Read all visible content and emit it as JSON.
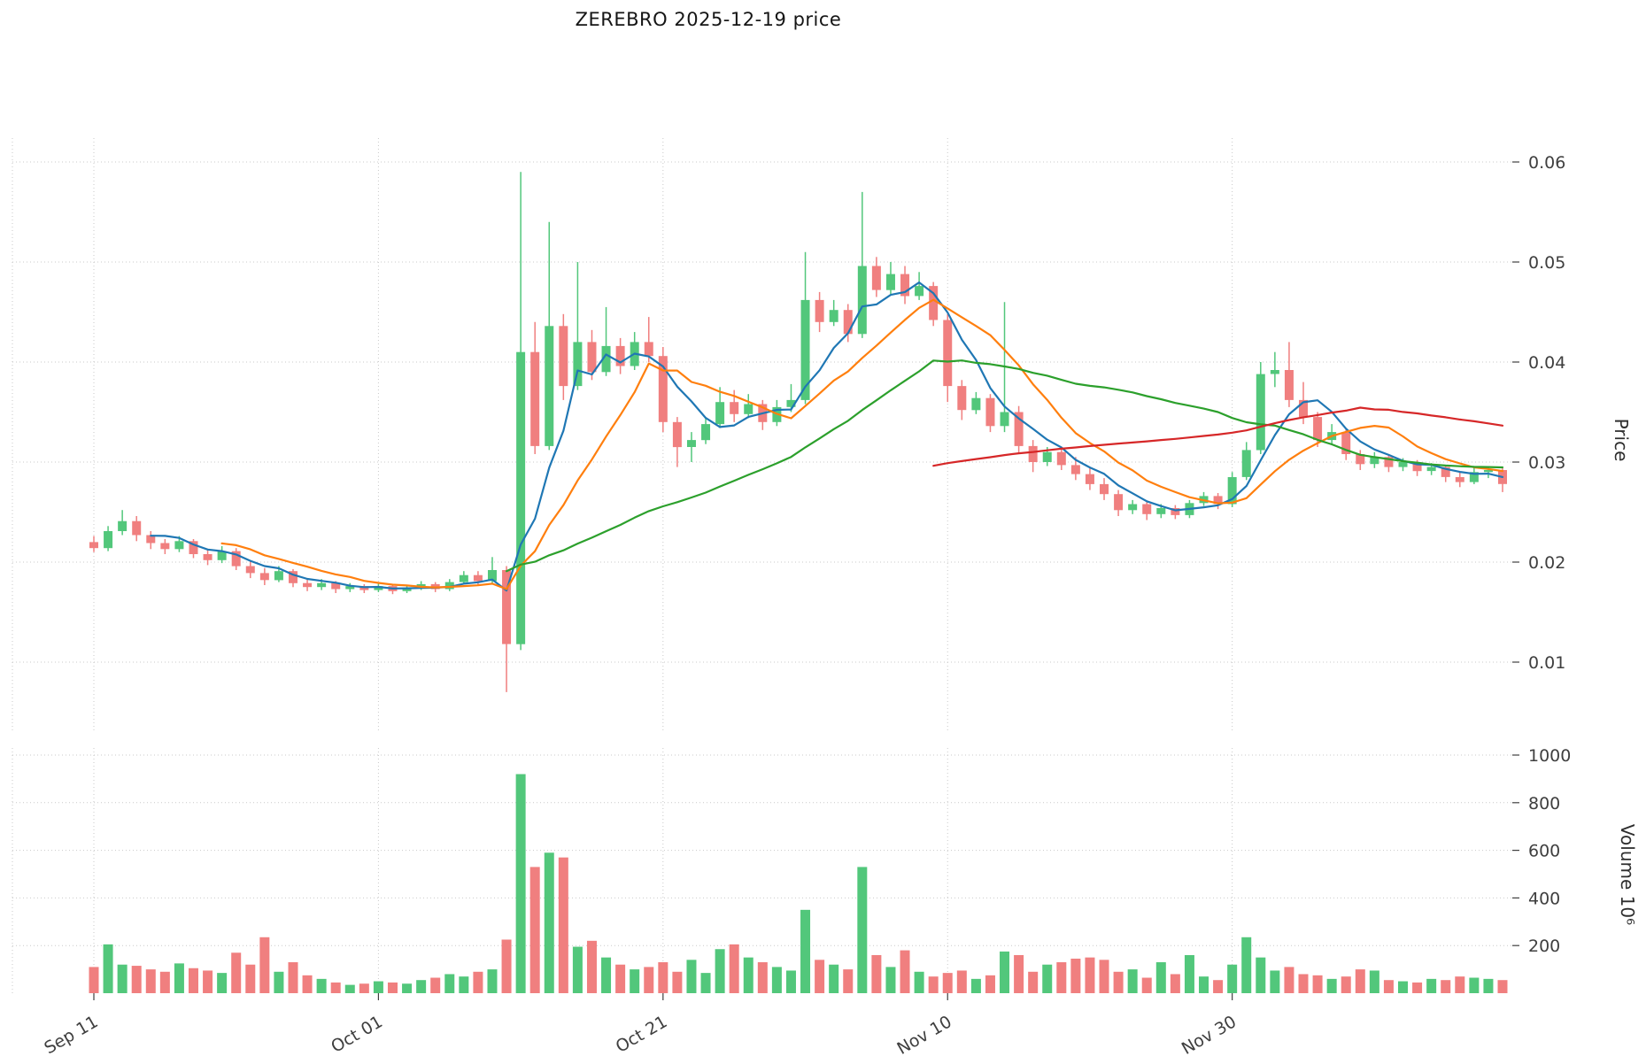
{
  "chart_data": {
    "type": "candlestick",
    "title": "ZEREBRO  2025-12-19  price",
    "x_axis": {
      "tick_labels": [
        "Sep 11",
        "Oct 01",
        "Oct 21",
        "Nov 10",
        "Nov 30"
      ],
      "tick_indices": [
        0,
        20,
        40,
        60,
        80
      ]
    },
    "price_axis": {
      "label": "Price",
      "ticks": [
        0.01,
        0.02,
        0.03,
        0.04,
        0.05,
        0.06
      ],
      "range": [
        0.005,
        0.0625
      ]
    },
    "volume_axis": {
      "label": "Volume  10⁶",
      "ticks": [
        200,
        400,
        600,
        800,
        1000
      ],
      "range": [
        0,
        1050
      ],
      "unit": "10⁶"
    },
    "style": {
      "up_color": "#52c77b",
      "down_color": "#f07f7f",
      "grid_color": "#c9c9c9",
      "tick_label_color": "#3f3f3f",
      "background": "#ffffff",
      "grid": "dotted"
    },
    "moving_averages": [
      {
        "name": "MA5",
        "window": 5,
        "color": "#1f77b4"
      },
      {
        "name": "MA10",
        "window": 10,
        "color": "#ff7f0e"
      },
      {
        "name": "MA30",
        "window": 30,
        "color": "#2ca02c"
      },
      {
        "name": "MA60",
        "window": 60,
        "color": "#d62728"
      }
    ],
    "legend_position": "none",
    "ohlcv": {
      "dates": [
        "2025-09-11",
        "2025-09-12",
        "2025-09-13",
        "2025-09-14",
        "2025-09-15",
        "2025-09-16",
        "2025-09-17",
        "2025-09-18",
        "2025-09-19",
        "2025-09-20",
        "2025-09-21",
        "2025-09-22",
        "2025-09-23",
        "2025-09-24",
        "2025-09-25",
        "2025-09-26",
        "2025-09-27",
        "2025-09-28",
        "2025-09-29",
        "2025-09-30",
        "2025-10-01",
        "2025-10-02",
        "2025-10-03",
        "2025-10-04",
        "2025-10-05",
        "2025-10-06",
        "2025-10-07",
        "2025-10-08",
        "2025-10-09",
        "2025-10-10",
        "2025-10-11",
        "2025-10-12",
        "2025-10-13",
        "2025-10-14",
        "2025-10-15",
        "2025-10-16",
        "2025-10-17",
        "2025-10-18",
        "2025-10-19",
        "2025-10-20",
        "2025-10-21",
        "2025-10-22",
        "2025-10-23",
        "2025-10-24",
        "2025-10-25",
        "2025-10-26",
        "2025-10-27",
        "2025-10-28",
        "2025-10-29",
        "2025-10-30",
        "2025-10-31",
        "2025-11-01",
        "2025-11-02",
        "2025-11-03",
        "2025-11-04",
        "2025-11-05",
        "2025-11-06",
        "2025-11-07",
        "2025-11-08",
        "2025-11-09",
        "2025-11-10",
        "2025-11-11",
        "2025-11-12",
        "2025-11-13",
        "2025-11-14",
        "2025-11-15",
        "2025-11-16",
        "2025-11-17",
        "2025-11-18",
        "2025-11-19",
        "2025-11-20",
        "2025-11-21",
        "2025-11-22",
        "2025-11-23",
        "2025-11-24",
        "2025-11-25",
        "2025-11-26",
        "2025-11-27",
        "2025-11-28",
        "2025-11-29",
        "2025-11-30",
        "2025-12-01",
        "2025-12-02",
        "2025-12-03",
        "2025-12-04",
        "2025-12-05",
        "2025-12-06",
        "2025-12-07",
        "2025-12-08",
        "2025-12-09",
        "2025-12-10",
        "2025-12-11",
        "2025-12-12",
        "2025-12-13",
        "2025-12-14",
        "2025-12-15",
        "2025-12-16",
        "2025-12-17",
        "2025-12-18",
        "2025-12-19"
      ],
      "open": [
        0.022,
        0.0214,
        0.0231,
        0.0241,
        0.0227,
        0.0219,
        0.0213,
        0.0221,
        0.0208,
        0.0202,
        0.0211,
        0.0196,
        0.0189,
        0.0182,
        0.0191,
        0.0179,
        0.0175,
        0.0179,
        0.0173,
        0.0176,
        0.0172,
        0.0176,
        0.0171,
        0.0174,
        0.0178,
        0.0173,
        0.018,
        0.0187,
        0.0181,
        0.0192,
        0.0118,
        0.041,
        0.0316,
        0.0436,
        0.0376,
        0.042,
        0.039,
        0.0416,
        0.0396,
        0.042,
        0.0406,
        0.034,
        0.0315,
        0.0322,
        0.0338,
        0.036,
        0.0348,
        0.0358,
        0.034,
        0.0355,
        0.0362,
        0.0462,
        0.044,
        0.0452,
        0.0428,
        0.0496,
        0.0472,
        0.0488,
        0.0466,
        0.0476,
        0.0442,
        0.0376,
        0.0352,
        0.0364,
        0.0336,
        0.035,
        0.0316,
        0.03,
        0.031,
        0.0297,
        0.0288,
        0.0278,
        0.0268,
        0.0252,
        0.0258,
        0.0248,
        0.0254,
        0.0247,
        0.0259,
        0.0266,
        0.0258,
        0.0285,
        0.0312,
        0.0388,
        0.0392,
        0.0362,
        0.0345,
        0.0322,
        0.033,
        0.0308,
        0.0298,
        0.0305,
        0.0295,
        0.03,
        0.0291,
        0.0295,
        0.0285,
        0.028,
        0.029,
        0.0292
      ],
      "high": [
        0.0226,
        0.0236,
        0.0252,
        0.0246,
        0.0231,
        0.0223,
        0.0226,
        0.0223,
        0.0212,
        0.0216,
        0.0214,
        0.0201,
        0.0194,
        0.0196,
        0.0193,
        0.0184,
        0.0183,
        0.0181,
        0.0179,
        0.0178,
        0.0179,
        0.0178,
        0.0177,
        0.0181,
        0.018,
        0.0183,
        0.0191,
        0.0191,
        0.0205,
        0.0196,
        0.059,
        0.044,
        0.054,
        0.0448,
        0.05,
        0.0432,
        0.0455,
        0.0424,
        0.043,
        0.0445,
        0.0415,
        0.0345,
        0.033,
        0.0345,
        0.0375,
        0.0372,
        0.0368,
        0.0362,
        0.0362,
        0.0378,
        0.051,
        0.047,
        0.0462,
        0.0458,
        0.057,
        0.0505,
        0.05,
        0.0496,
        0.049,
        0.048,
        0.0448,
        0.0382,
        0.037,
        0.0368,
        0.046,
        0.0356,
        0.0322,
        0.0315,
        0.0314,
        0.0305,
        0.0294,
        0.0284,
        0.0272,
        0.0262,
        0.0261,
        0.0258,
        0.0257,
        0.0262,
        0.027,
        0.0269,
        0.029,
        0.032,
        0.04,
        0.041,
        0.042,
        0.038,
        0.035,
        0.0338,
        0.0334,
        0.0312,
        0.031,
        0.0308,
        0.0304,
        0.0302,
        0.0299,
        0.0297,
        0.029,
        0.0295,
        0.0296,
        0.0294
      ],
      "low": [
        0.021,
        0.0211,
        0.0227,
        0.0221,
        0.0213,
        0.0208,
        0.021,
        0.0204,
        0.0197,
        0.0199,
        0.0192,
        0.0184,
        0.0177,
        0.018,
        0.0175,
        0.0171,
        0.0172,
        0.0169,
        0.017,
        0.0169,
        0.017,
        0.0168,
        0.0169,
        0.0172,
        0.017,
        0.0171,
        0.0178,
        0.0177,
        0.0179,
        0.007,
        0.0112,
        0.0308,
        0.0312,
        0.0362,
        0.0372,
        0.0382,
        0.0386,
        0.0388,
        0.0392,
        0.04,
        0.033,
        0.0295,
        0.03,
        0.0318,
        0.0334,
        0.034,
        0.0344,
        0.0332,
        0.0336,
        0.035,
        0.0358,
        0.043,
        0.0436,
        0.042,
        0.0424,
        0.0465,
        0.0468,
        0.0458,
        0.0462,
        0.0436,
        0.036,
        0.0342,
        0.0348,
        0.033,
        0.033,
        0.0308,
        0.029,
        0.0296,
        0.0292,
        0.0282,
        0.0272,
        0.0262,
        0.0246,
        0.0248,
        0.0242,
        0.0244,
        0.0243,
        0.0244,
        0.0256,
        0.0253,
        0.0255,
        0.0282,
        0.0308,
        0.0375,
        0.0355,
        0.0338,
        0.0315,
        0.0318,
        0.0302,
        0.0292,
        0.0294,
        0.029,
        0.0291,
        0.0286,
        0.0287,
        0.028,
        0.0275,
        0.0278,
        0.0284,
        0.027
      ],
      "close": [
        0.0214,
        0.0231,
        0.0241,
        0.0227,
        0.0219,
        0.0213,
        0.0221,
        0.0208,
        0.0202,
        0.0211,
        0.0196,
        0.0189,
        0.0182,
        0.0191,
        0.0179,
        0.0175,
        0.0179,
        0.0173,
        0.0176,
        0.0172,
        0.0176,
        0.0171,
        0.0174,
        0.0178,
        0.0173,
        0.018,
        0.0187,
        0.0181,
        0.0192,
        0.0118,
        0.041,
        0.0316,
        0.0436,
        0.0376,
        0.042,
        0.039,
        0.0416,
        0.0396,
        0.042,
        0.0406,
        0.034,
        0.0315,
        0.0322,
        0.0338,
        0.036,
        0.0348,
        0.0358,
        0.034,
        0.0355,
        0.0362,
        0.0462,
        0.044,
        0.0452,
        0.0428,
        0.0496,
        0.0472,
        0.0488,
        0.0466,
        0.0476,
        0.0442,
        0.0376,
        0.0352,
        0.0364,
        0.0336,
        0.035,
        0.0316,
        0.03,
        0.031,
        0.0297,
        0.0288,
        0.0278,
        0.0268,
        0.0252,
        0.0258,
        0.0248,
        0.0254,
        0.0247,
        0.0259,
        0.0266,
        0.0258,
        0.0285,
        0.0312,
        0.0388,
        0.0392,
        0.0362,
        0.0345,
        0.0322,
        0.033,
        0.0308,
        0.0298,
        0.0305,
        0.0295,
        0.03,
        0.0291,
        0.0295,
        0.0285,
        0.028,
        0.029,
        0.0292,
        0.0278
      ],
      "volume": [
        110,
        205,
        120,
        115,
        100,
        90,
        125,
        105,
        95,
        85,
        170,
        120,
        235,
        90,
        130,
        75,
        60,
        45,
        35,
        40,
        50,
        45,
        40,
        55,
        65,
        80,
        70,
        90,
        100,
        225,
        920,
        530,
        590,
        570,
        195,
        220,
        150,
        120,
        100,
        110,
        130,
        90,
        140,
        85,
        185,
        205,
        150,
        130,
        110,
        95,
        350,
        140,
        120,
        100,
        530,
        160,
        110,
        180,
        90,
        70,
        85,
        95,
        60,
        75,
        175,
        160,
        90,
        120,
        130,
        145,
        150,
        140,
        90,
        100,
        65,
        130,
        80,
        160,
        70,
        55,
        120,
        235,
        150,
        95,
        110,
        80,
        75,
        60,
        70,
        100,
        95,
        55,
        50,
        45,
        60,
        55,
        70,
        65,
        60,
        55
      ]
    }
  }
}
